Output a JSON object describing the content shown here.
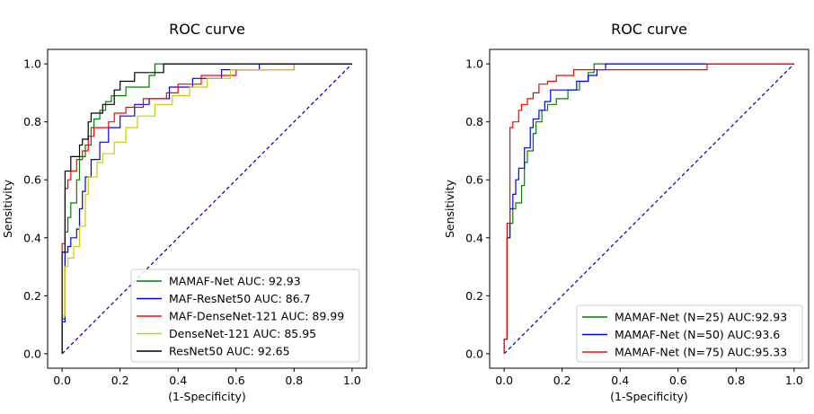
{
  "chart_data": [
    {
      "type": "line",
      "title": "ROC curve",
      "xlabel": "(1-Specificity)",
      "ylabel": "Sensitivity",
      "xlim": [
        -0.05,
        1.05
      ],
      "ylim": [
        -0.05,
        1.05
      ],
      "xticks": [
        "0.0",
        "0.2",
        "0.4",
        "0.6",
        "0.8",
        "1.0"
      ],
      "yticks": [
        "0.0",
        "0.2",
        "0.4",
        "0.6",
        "0.8",
        "1.0"
      ],
      "legend_position": "lower-right",
      "diagonal_reference": true,
      "series": [
        {
          "name": "MAMAF-Net AUC: 92.93",
          "color": "#008000",
          "points": [
            [
              0,
              0
            ],
            [
              0,
              0.12
            ],
            [
              0.01,
              0.12
            ],
            [
              0.01,
              0.42
            ],
            [
              0.02,
              0.42
            ],
            [
              0.02,
              0.47
            ],
            [
              0.03,
              0.47
            ],
            [
              0.03,
              0.52
            ],
            [
              0.05,
              0.52
            ],
            [
              0.05,
              0.6
            ],
            [
              0.06,
              0.6
            ],
            [
              0.06,
              0.68
            ],
            [
              0.08,
              0.68
            ],
            [
              0.08,
              0.72
            ],
            [
              0.1,
              0.72
            ],
            [
              0.1,
              0.78
            ],
            [
              0.11,
              0.78
            ],
            [
              0.11,
              0.81
            ],
            [
              0.13,
              0.81
            ],
            [
              0.13,
              0.84
            ],
            [
              0.15,
              0.84
            ],
            [
              0.15,
              0.87
            ],
            [
              0.17,
              0.87
            ],
            [
              0.17,
              0.89
            ],
            [
              0.22,
              0.89
            ],
            [
              0.22,
              0.92
            ],
            [
              0.3,
              0.92
            ],
            [
              0.3,
              0.96
            ],
            [
              0.32,
              0.96
            ],
            [
              0.32,
              1.0
            ],
            [
              1.0,
              1.0
            ]
          ]
        },
        {
          "name": "MAF-ResNet50 AUC: 86.7",
          "color": "#0000ff",
          "points": [
            [
              0,
              0
            ],
            [
              0,
              0.11
            ],
            [
              0.01,
              0.11
            ],
            [
              0.01,
              0.35
            ],
            [
              0.02,
              0.35
            ],
            [
              0.02,
              0.37
            ],
            [
              0.03,
              0.37
            ],
            [
              0.03,
              0.4
            ],
            [
              0.05,
              0.4
            ],
            [
              0.05,
              0.43
            ],
            [
              0.06,
              0.43
            ],
            [
              0.06,
              0.5
            ],
            [
              0.07,
              0.5
            ],
            [
              0.07,
              0.56
            ],
            [
              0.08,
              0.56
            ],
            [
              0.08,
              0.61
            ],
            [
              0.1,
              0.61
            ],
            [
              0.1,
              0.67
            ],
            [
              0.13,
              0.67
            ],
            [
              0.13,
              0.73
            ],
            [
              0.16,
              0.73
            ],
            [
              0.16,
              0.78
            ],
            [
              0.2,
              0.78
            ],
            [
              0.2,
              0.82
            ],
            [
              0.25,
              0.82
            ],
            [
              0.25,
              0.86
            ],
            [
              0.3,
              0.86
            ],
            [
              0.3,
              0.88
            ],
            [
              0.37,
              0.88
            ],
            [
              0.37,
              0.92
            ],
            [
              0.45,
              0.92
            ],
            [
              0.45,
              0.95
            ],
            [
              0.55,
              0.95
            ],
            [
              0.55,
              0.98
            ],
            [
              0.68,
              0.98
            ],
            [
              0.68,
              1.0
            ],
            [
              1.0,
              1.0
            ]
          ]
        },
        {
          "name": "MAF-DenseNet-121 AUC: 89.99",
          "color": "#ff0000",
          "points": [
            [
              0,
              0
            ],
            [
              0,
              0.38
            ],
            [
              0.01,
              0.38
            ],
            [
              0.01,
              0.57
            ],
            [
              0.02,
              0.57
            ],
            [
              0.02,
              0.6
            ],
            [
              0.03,
              0.6
            ],
            [
              0.03,
              0.63
            ],
            [
              0.05,
              0.63
            ],
            [
              0.05,
              0.67
            ],
            [
              0.07,
              0.67
            ],
            [
              0.07,
              0.7
            ],
            [
              0.09,
              0.7
            ],
            [
              0.09,
              0.75
            ],
            [
              0.11,
              0.75
            ],
            [
              0.11,
              0.78
            ],
            [
              0.16,
              0.78
            ],
            [
              0.16,
              0.8
            ],
            [
              0.18,
              0.8
            ],
            [
              0.18,
              0.83
            ],
            [
              0.22,
              0.83
            ],
            [
              0.22,
              0.85
            ],
            [
              0.28,
              0.85
            ],
            [
              0.28,
              0.88
            ],
            [
              0.36,
              0.88
            ],
            [
              0.36,
              0.9
            ],
            [
              0.4,
              0.9
            ],
            [
              0.4,
              0.93
            ],
            [
              0.48,
              0.93
            ],
            [
              0.48,
              0.96
            ],
            [
              0.6,
              0.96
            ],
            [
              0.6,
              0.98
            ],
            [
              0.8,
              0.98
            ],
            [
              0.8,
              1.0
            ],
            [
              1.0,
              1.0
            ]
          ]
        },
        {
          "name": "DenseNet-121 AUC: 85.95",
          "color": "#cccc00",
          "points": [
            [
              0,
              0
            ],
            [
              0,
              0.13
            ],
            [
              0.01,
              0.13
            ],
            [
              0.01,
              0.3
            ],
            [
              0.02,
              0.3
            ],
            [
              0.02,
              0.33
            ],
            [
              0.04,
              0.33
            ],
            [
              0.04,
              0.37
            ],
            [
              0.06,
              0.37
            ],
            [
              0.06,
              0.44
            ],
            [
              0.08,
              0.44
            ],
            [
              0.08,
              0.55
            ],
            [
              0.09,
              0.55
            ],
            [
              0.09,
              0.61
            ],
            [
              0.12,
              0.61
            ],
            [
              0.12,
              0.66
            ],
            [
              0.14,
              0.66
            ],
            [
              0.14,
              0.69
            ],
            [
              0.18,
              0.69
            ],
            [
              0.18,
              0.73
            ],
            [
              0.22,
              0.73
            ],
            [
              0.22,
              0.78
            ],
            [
              0.26,
              0.78
            ],
            [
              0.26,
              0.82
            ],
            [
              0.32,
              0.82
            ],
            [
              0.32,
              0.86
            ],
            [
              0.38,
              0.86
            ],
            [
              0.38,
              0.89
            ],
            [
              0.44,
              0.89
            ],
            [
              0.44,
              0.92
            ],
            [
              0.5,
              0.92
            ],
            [
              0.5,
              0.95
            ],
            [
              0.58,
              0.95
            ],
            [
              0.58,
              0.98
            ],
            [
              0.8,
              0.98
            ],
            [
              0.8,
              1.0
            ],
            [
              1.0,
              1.0
            ]
          ]
        },
        {
          "name": "ResNet50 AUC: 92.65",
          "color": "#000000",
          "points": [
            [
              0,
              0
            ],
            [
              0,
              0.35
            ],
            [
              0.01,
              0.35
            ],
            [
              0.01,
              0.63
            ],
            [
              0.03,
              0.63
            ],
            [
              0.03,
              0.68
            ],
            [
              0.06,
              0.68
            ],
            [
              0.06,
              0.72
            ],
            [
              0.07,
              0.72
            ],
            [
              0.07,
              0.74
            ],
            [
              0.09,
              0.74
            ],
            [
              0.09,
              0.8
            ],
            [
              0.1,
              0.8
            ],
            [
              0.1,
              0.83
            ],
            [
              0.14,
              0.83
            ],
            [
              0.14,
              0.86
            ],
            [
              0.18,
              0.86
            ],
            [
              0.18,
              0.91
            ],
            [
              0.2,
              0.91
            ],
            [
              0.2,
              0.94
            ],
            [
              0.25,
              0.94
            ],
            [
              0.25,
              0.97
            ],
            [
              0.35,
              0.97
            ],
            [
              0.35,
              1.0
            ],
            [
              1.0,
              1.0
            ]
          ]
        }
      ]
    },
    {
      "type": "line",
      "title": "ROC curve",
      "xlabel": "(1-Specificity)",
      "ylabel": "Sensitivity",
      "xlim": [
        -0.05,
        1.05
      ],
      "ylim": [
        -0.05,
        1.05
      ],
      "xticks": [
        "0.0",
        "0.2",
        "0.4",
        "0.6",
        "0.8",
        "1.0"
      ],
      "yticks": [
        "0.0",
        "0.2",
        "0.4",
        "0.6",
        "0.8",
        "1.0"
      ],
      "legend_position": "lower-right",
      "diagonal_reference": true,
      "series": [
        {
          "name": "MAMAF-Net (N=25) AUC:92.93",
          "color": "#008000",
          "points": [
            [
              0,
              0
            ],
            [
              0,
              0.05
            ],
            [
              0.01,
              0.05
            ],
            [
              0.01,
              0.4
            ],
            [
              0.02,
              0.4
            ],
            [
              0.02,
              0.45
            ],
            [
              0.03,
              0.45
            ],
            [
              0.03,
              0.5
            ],
            [
              0.04,
              0.5
            ],
            [
              0.04,
              0.52
            ],
            [
              0.06,
              0.52
            ],
            [
              0.06,
              0.58
            ],
            [
              0.07,
              0.58
            ],
            [
              0.07,
              0.66
            ],
            [
              0.08,
              0.66
            ],
            [
              0.08,
              0.7
            ],
            [
              0.1,
              0.7
            ],
            [
              0.1,
              0.76
            ],
            [
              0.11,
              0.76
            ],
            [
              0.11,
              0.8
            ],
            [
              0.13,
              0.8
            ],
            [
              0.13,
              0.84
            ],
            [
              0.15,
              0.84
            ],
            [
              0.15,
              0.86
            ],
            [
              0.18,
              0.86
            ],
            [
              0.18,
              0.88
            ],
            [
              0.22,
              0.88
            ],
            [
              0.22,
              0.91
            ],
            [
              0.26,
              0.91
            ],
            [
              0.26,
              0.94
            ],
            [
              0.29,
              0.94
            ],
            [
              0.29,
              0.97
            ],
            [
              0.31,
              0.97
            ],
            [
              0.31,
              1.0
            ],
            [
              1.0,
              1.0
            ]
          ]
        },
        {
          "name": "MAMAF-Net (N=50) AUC:93.6",
          "color": "#0000ff",
          "points": [
            [
              0,
              0
            ],
            [
              0,
              0.05
            ],
            [
              0.01,
              0.05
            ],
            [
              0.01,
              0.4
            ],
            [
              0.02,
              0.4
            ],
            [
              0.02,
              0.5
            ],
            [
              0.03,
              0.5
            ],
            [
              0.03,
              0.55
            ],
            [
              0.04,
              0.55
            ],
            [
              0.04,
              0.6
            ],
            [
              0.05,
              0.6
            ],
            [
              0.05,
              0.64
            ],
            [
              0.07,
              0.64
            ],
            [
              0.07,
              0.71
            ],
            [
              0.09,
              0.71
            ],
            [
              0.09,
              0.78
            ],
            [
              0.1,
              0.78
            ],
            [
              0.1,
              0.81
            ],
            [
              0.12,
              0.81
            ],
            [
              0.12,
              0.84
            ],
            [
              0.14,
              0.84
            ],
            [
              0.14,
              0.87
            ],
            [
              0.16,
              0.87
            ],
            [
              0.16,
              0.91
            ],
            [
              0.25,
              0.91
            ],
            [
              0.25,
              0.94
            ],
            [
              0.29,
              0.94
            ],
            [
              0.29,
              0.96
            ],
            [
              0.32,
              0.96
            ],
            [
              0.32,
              0.98
            ],
            [
              0.35,
              0.98
            ],
            [
              0.35,
              1.0
            ],
            [
              1.0,
              1.0
            ]
          ]
        },
        {
          "name": "MAMAF-Net (N=75) AUC:95.33",
          "color": "#ff0000",
          "points": [
            [
              0,
              0
            ],
            [
              0,
              0.05
            ],
            [
              0.01,
              0.05
            ],
            [
              0.01,
              0.45
            ],
            [
              0.02,
              0.45
            ],
            [
              0.02,
              0.78
            ],
            [
              0.03,
              0.78
            ],
            [
              0.03,
              0.8
            ],
            [
              0.05,
              0.8
            ],
            [
              0.05,
              0.84
            ],
            [
              0.06,
              0.84
            ],
            [
              0.06,
              0.86
            ],
            [
              0.08,
              0.86
            ],
            [
              0.08,
              0.88
            ],
            [
              0.1,
              0.88
            ],
            [
              0.1,
              0.9
            ],
            [
              0.12,
              0.9
            ],
            [
              0.12,
              0.93
            ],
            [
              0.15,
              0.93
            ],
            [
              0.15,
              0.94
            ],
            [
              0.18,
              0.94
            ],
            [
              0.18,
              0.96
            ],
            [
              0.24,
              0.96
            ],
            [
              0.24,
              0.98
            ],
            [
              0.7,
              0.98
            ],
            [
              0.7,
              1.0
            ],
            [
              1.0,
              1.0
            ]
          ]
        }
      ]
    }
  ]
}
